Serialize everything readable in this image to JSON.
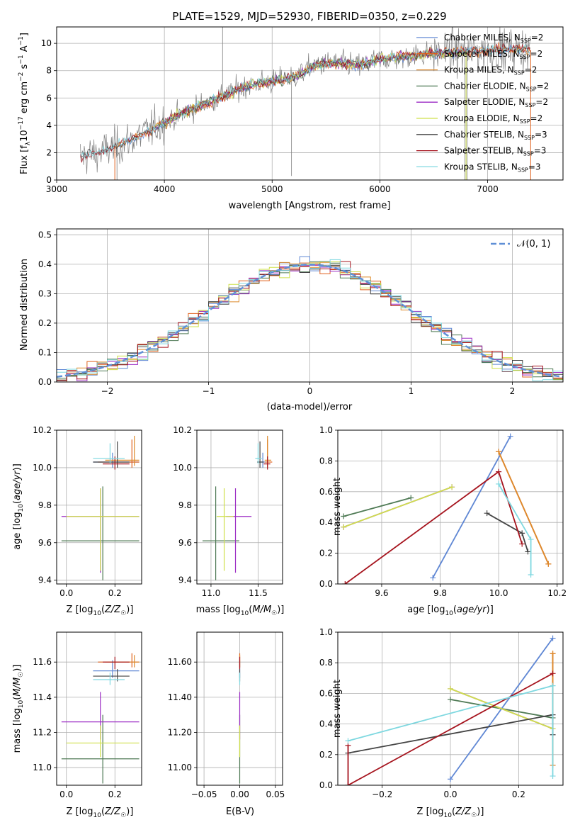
{
  "colors": {
    "chabrier_miles": "#5f87d4",
    "salpeter_miles": "#e0611d",
    "kroupa_miles": "#dd8a2c",
    "chabrier_elodie": "#4f7a55",
    "salpeter_elodie": "#9b2bc4",
    "kroupa_elodie": "#cfe04a",
    "chabrier_stelib": "#444444",
    "salpeter_stelib": "#a6141e",
    "kroupa_stelib": "#7fd8e0",
    "data": "#7f7f7f"
  },
  "chart_data": [
    {
      "type": "line",
      "title": "PLATE=1529, MJD=52930, FIBERID=0350, z=0.229",
      "xlabel": "wavelength [Angstrom, rest frame]",
      "ylabel": "Flux [f_λ10^-17 erg cm^-2 s^-1 A^-1]",
      "xlim": [
        3000,
        7700
      ],
      "ylim": [
        0,
        11.2
      ],
      "xticks": [
        3000,
        4000,
        5000,
        6000,
        7000
      ],
      "yticks": [
        0,
        2,
        4,
        6,
        8,
        10
      ],
      "legend_position": "top-right",
      "legend": [
        {
          "label": "Chabrier MILES, N",
          "sub": "SSP",
          "suffix": "=2",
          "color_key": "chabrier_miles"
        },
        {
          "label": "Salpeter MILES, N",
          "sub": "SSP",
          "suffix": "=2",
          "color_key": "salpeter_miles"
        },
        {
          "label": "Kroupa MILES, N",
          "sub": "SSP",
          "suffix": "=2",
          "color_key": "kroupa_miles"
        },
        {
          "label": "Chabrier ELODIE, N",
          "sub": "SSP",
          "suffix": "=2",
          "color_key": "chabrier_elodie"
        },
        {
          "label": "Salpeter ELODIE, N",
          "sub": "SSP",
          "suffix": "=2",
          "color_key": "salpeter_elodie"
        },
        {
          "label": "Kroupa ELODIE, N",
          "sub": "SSP",
          "suffix": "=2",
          "color_key": "kroupa_elodie"
        },
        {
          "label": "Chabrier STELIB, N",
          "sub": "SSP",
          "suffix": "=3",
          "color_key": "chabrier_stelib"
        },
        {
          "label": "Salpeter STELIB, N",
          "sub": "SSP",
          "suffix": "=3",
          "color_key": "salpeter_stelib"
        },
        {
          "label": "Kroupa STELIB, N",
          "sub": "SSP",
          "suffix": "=3",
          "color_key": "kroupa_stelib"
        }
      ],
      "spectrum_trend": {
        "x": [
          3220,
          3400,
          3600,
          3800,
          4000,
          4200,
          4400,
          4600,
          4800,
          5000,
          5200,
          5400,
          5600,
          5800,
          6000,
          6200,
          6400,
          6600,
          6800,
          7000,
          7200,
          7400
        ],
        "y": [
          1.7,
          2.0,
          2.6,
          3.4,
          4.2,
          5.0,
          5.7,
          6.3,
          7.0,
          7.2,
          7.5,
          8.4,
          8.6,
          8.4,
          8.8,
          9.0,
          9.2,
          9.3,
          9.4,
          9.5,
          9.6,
          9.5
        ]
      }
    },
    {
      "type": "histogram",
      "xlabel": "(data-model)/error",
      "ylabel": "Normed distribution",
      "xlim": [
        -2.5,
        2.5
      ],
      "ylim": [
        0,
        0.52
      ],
      "xticks": [
        -2,
        -1,
        0,
        1,
        2
      ],
      "yticks": [
        0.0,
        0.1,
        0.2,
        0.3,
        0.4,
        0.5
      ],
      "legend": "𝒩(0, 1)",
      "legend_position": "top-right",
      "bin_width": 0.1,
      "reference_curve": "normal(0,1)"
    },
    {
      "type": "scatter",
      "xlabel": "Z [log10(Z/Z⊙)]",
      "ylabel": "age  [log10(age/yr)]",
      "xlim": [
        -0.04,
        0.31
      ],
      "ylim": [
        9.38,
        10.2
      ],
      "xticks": [
        0.0,
        0.2
      ],
      "yticks": [
        9.4,
        9.6,
        9.8,
        10.0,
        10.2
      ],
      "points": [
        {
          "k": "chabrier_miles",
          "x": 0.19,
          "y": 10.03,
          "xe": [
            0.08,
            0.11
          ],
          "ye": [
            0.03,
            0.05
          ]
        },
        {
          "k": "salpeter_miles",
          "x": 0.27,
          "y": 10.03,
          "xe": [
            0.14,
            0.03
          ],
          "ye": [
            0.03,
            0.12
          ]
        },
        {
          "k": "kroupa_miles",
          "x": 0.28,
          "y": 10.04,
          "xe": [
            0.12,
            0.02
          ],
          "ye": [
            0.03,
            0.13
          ]
        },
        {
          "k": "chabrier_elodie",
          "x": 0.15,
          "y": 9.61,
          "xe": [
            0.17,
            0.15
          ],
          "ye": [
            0.21,
            0.29
          ]
        },
        {
          "k": "salpeter_elodie",
          "x": 0.14,
          "y": 9.74,
          "xe": [
            0.16,
            0.16
          ],
          "ye": [
            0.3,
            0.15
          ]
        },
        {
          "k": "kroupa_elodie",
          "x": 0.14,
          "y": 9.74,
          "xe": [
            0.14,
            0.16
          ],
          "ye": [
            0.29,
            0.15
          ]
        },
        {
          "k": "chabrier_stelib",
          "x": 0.21,
          "y": 10.03,
          "xe": [
            0.1,
            0.05
          ],
          "ye": [
            0.03,
            0.11
          ]
        },
        {
          "k": "salpeter_stelib",
          "x": 0.2,
          "y": 10.02,
          "xe": [
            0.05,
            0.06
          ],
          "ye": [
            0.03,
            0.04
          ]
        },
        {
          "k": "kroupa_stelib",
          "x": 0.18,
          "y": 10.05,
          "xe": [
            0.07,
            0.06
          ],
          "ye": [
            0.03,
            0.08
          ]
        }
      ]
    },
    {
      "type": "scatter",
      "xlabel": "mass [log10(M/M⊙)]",
      "xlim": [
        10.85,
        11.76
      ],
      "ylim": [
        9.38,
        10.2
      ],
      "xticks": [
        11.0,
        11.5
      ],
      "yticks": [
        9.4,
        9.6,
        9.8,
        10.0,
        10.2
      ],
      "points": [
        {
          "k": "chabrier_miles",
          "x": 11.55,
          "y": 10.03,
          "xe": [
            0.04,
            0.06
          ],
          "ye": [
            0.03,
            0.05
          ]
        },
        {
          "k": "salpeter_miles",
          "x": 11.6,
          "y": 10.03,
          "xe": [
            0.03,
            0.05
          ],
          "ye": [
            0.03,
            0.12
          ]
        },
        {
          "k": "kroupa_miles",
          "x": 11.6,
          "y": 10.04,
          "xe": [
            0.03,
            0.04
          ],
          "ye": [
            0.03,
            0.13
          ]
        },
        {
          "k": "chabrier_elodie",
          "x": 11.05,
          "y": 9.61,
          "xe": [
            0.14,
            0.25
          ],
          "ye": [
            0.21,
            0.29
          ]
        },
        {
          "k": "salpeter_elodie",
          "x": 11.26,
          "y": 9.74,
          "xe": [
            0.1,
            0.17
          ],
          "ye": [
            0.3,
            0.15
          ]
        },
        {
          "k": "kroupa_elodie",
          "x": 11.14,
          "y": 9.74,
          "xe": [
            0.08,
            0.1
          ],
          "ye": [
            0.29,
            0.15
          ]
        },
        {
          "k": "chabrier_stelib",
          "x": 11.52,
          "y": 10.03,
          "xe": [
            0.03,
            0.04
          ],
          "ye": [
            0.03,
            0.11
          ]
        },
        {
          "k": "salpeter_stelib",
          "x": 11.6,
          "y": 10.02,
          "xe": [
            0.04,
            0.03
          ],
          "ye": [
            0.03,
            0.04
          ]
        },
        {
          "k": "kroupa_stelib",
          "x": 11.5,
          "y": 10.05,
          "xe": [
            0.03,
            0.04
          ],
          "ye": [
            0.03,
            0.08
          ]
        }
      ]
    },
    {
      "type": "line",
      "xlabel": "age  [log10(age/yr)]",
      "ylabel": "mass weight",
      "xlim": [
        9.45,
        10.22
      ],
      "ylim": [
        0,
        1.0
      ],
      "xticks": [
        9.6,
        9.8,
        10.0,
        10.2
      ],
      "yticks": [
        0.0,
        0.2,
        0.4,
        0.6,
        0.8,
        1.0
      ],
      "series": [
        {
          "k": "chabrier_miles",
          "x": [
            9.775,
            10.04
          ],
          "y": [
            0.04,
            0.96
          ]
        },
        {
          "k": "salpeter_miles",
          "x": [
            10.0,
            10.17
          ],
          "y": [
            0.86,
            0.13
          ]
        },
        {
          "k": "kroupa_miles",
          "x": [
            10.0,
            10.17
          ],
          "y": [
            0.86,
            0.13
          ]
        },
        {
          "k": "chabrier_elodie",
          "x": [
            9.47,
            9.7
          ],
          "y": [
            0.44,
            0.56
          ]
        },
        {
          "k": "salpeter_elodie",
          "x": [
            9.47,
            9.84
          ],
          "y": [
            0.37,
            0.63
          ]
        },
        {
          "k": "kroupa_elodie",
          "x": [
            9.47,
            9.84
          ],
          "y": [
            0.37,
            0.63
          ]
        },
        {
          "k": "chabrier_stelib",
          "x": [
            9.96,
            10.08,
            10.1
          ],
          "y": [
            0.46,
            0.33,
            0.21
          ]
        },
        {
          "k": "salpeter_stelib",
          "x": [
            9.475,
            10.0,
            10.08
          ],
          "y": [
            0.0,
            0.73,
            0.26
          ]
        },
        {
          "k": "kroupa_stelib",
          "x": [
            10.0,
            10.11,
            10.11
          ],
          "y": [
            0.65,
            0.29,
            0.06
          ]
        }
      ]
    },
    {
      "type": "scatter",
      "xlabel": "Z [log10(Z/Z⊙)]",
      "ylabel": "mass [log10(M/M⊙)]",
      "xlim": [
        -0.04,
        0.31
      ],
      "ylim": [
        10.9,
        11.77
      ],
      "xticks": [
        0.0,
        0.2
      ],
      "yticks": [
        11.0,
        11.2,
        11.4,
        11.6
      ],
      "points": [
        {
          "k": "chabrier_miles",
          "x": 0.19,
          "y": 11.55,
          "xe": [
            0.08,
            0.11
          ],
          "ye": [
            0.04,
            0.06
          ]
        },
        {
          "k": "salpeter_miles",
          "x": 0.27,
          "y": 11.6,
          "xe": [
            0.14,
            0.03
          ],
          "ye": [
            0.03,
            0.05
          ]
        },
        {
          "k": "kroupa_miles",
          "x": 0.28,
          "y": 11.6,
          "xe": [
            0.12,
            0.02
          ],
          "ye": [
            0.03,
            0.04
          ]
        },
        {
          "k": "chabrier_elodie",
          "x": 0.15,
          "y": 11.05,
          "xe": [
            0.17,
            0.15
          ],
          "ye": [
            0.14,
            0.25
          ]
        },
        {
          "k": "salpeter_elodie",
          "x": 0.14,
          "y": 11.26,
          "xe": [
            0.16,
            0.16
          ],
          "ye": [
            0.1,
            0.17
          ]
        },
        {
          "k": "kroupa_elodie",
          "x": 0.14,
          "y": 11.14,
          "xe": [
            0.14,
            0.16
          ],
          "ye": [
            0.08,
            0.1
          ]
        },
        {
          "k": "chabrier_stelib",
          "x": 0.21,
          "y": 11.52,
          "xe": [
            0.1,
            0.05
          ],
          "ye": [
            0.03,
            0.04
          ]
        },
        {
          "k": "salpeter_stelib",
          "x": 0.2,
          "y": 11.6,
          "xe": [
            0.05,
            0.06
          ],
          "ye": [
            0.04,
            0.03
          ]
        },
        {
          "k": "kroupa_stelib",
          "x": 0.18,
          "y": 11.5,
          "xe": [
            0.07,
            0.06
          ],
          "ye": [
            0.03,
            0.04
          ]
        }
      ]
    },
    {
      "type": "scatter",
      "xlabel": "E(B-V)",
      "xlim": [
        -0.06,
        0.06
      ],
      "ylim": [
        10.9,
        11.77
      ],
      "xticks": [
        -0.05,
        0.0,
        0.05
      ],
      "yticks": [
        11.0,
        11.2,
        11.4,
        11.6
      ],
      "points": [
        {
          "k": "chabrier_miles",
          "x": 0.0,
          "y": 11.55,
          "xe": [
            0,
            0
          ],
          "ye": [
            0.04,
            0.06
          ]
        },
        {
          "k": "salpeter_miles",
          "x": 0.0,
          "y": 11.6,
          "xe": [
            0,
            0
          ],
          "ye": [
            0.03,
            0.05
          ]
        },
        {
          "k": "kroupa_miles",
          "x": 0.0,
          "y": 11.6,
          "xe": [
            0,
            0
          ],
          "ye": [
            0.03,
            0.04
          ]
        },
        {
          "k": "chabrier_elodie",
          "x": 0.0,
          "y": 11.05,
          "xe": [
            0,
            0
          ],
          "ye": [
            0.14,
            0.25
          ]
        },
        {
          "k": "salpeter_elodie",
          "x": 0.0,
          "y": 11.26,
          "xe": [
            0,
            0
          ],
          "ye": [
            0.1,
            0.17
          ]
        },
        {
          "k": "kroupa_elodie",
          "x": 0.0,
          "y": 11.14,
          "xe": [
            0,
            0
          ],
          "ye": [
            0.08,
            0.1
          ]
        },
        {
          "k": "chabrier_stelib",
          "x": 0.0,
          "y": 11.52,
          "xe": [
            0,
            0
          ],
          "ye": [
            0.03,
            0.04
          ]
        },
        {
          "k": "salpeter_stelib",
          "x": 0.0,
          "y": 11.6,
          "xe": [
            0,
            0
          ],
          "ye": [
            0.04,
            0.03
          ]
        },
        {
          "k": "kroupa_stelib",
          "x": 0.0,
          "y": 11.5,
          "xe": [
            0,
            0
          ],
          "ye": [
            0.03,
            0.04
          ]
        }
      ]
    },
    {
      "type": "line",
      "xlabel": "Z [log10(Z/Z⊙)]",
      "ylabel": "mass weight",
      "xlim": [
        -0.33,
        0.33
      ],
      "ylim": [
        0,
        1.0
      ],
      "xticks": [
        -0.2,
        0.0,
        0.2
      ],
      "yticks": [
        0.0,
        0.2,
        0.4,
        0.6,
        0.8,
        1.0
      ],
      "series": [
        {
          "k": "chabrier_miles",
          "x": [
            0.0,
            0.3
          ],
          "y": [
            0.04,
            0.96
          ]
        },
        {
          "k": "salpeter_miles",
          "x": [
            0.3,
            0.3
          ],
          "y": [
            0.86,
            0.13
          ]
        },
        {
          "k": "kroupa_miles",
          "x": [
            0.3,
            0.3
          ],
          "y": [
            0.86,
            0.13
          ]
        },
        {
          "k": "chabrier_elodie",
          "x": [
            0.0,
            0.3
          ],
          "y": [
            0.56,
            0.44
          ]
        },
        {
          "k": "salpeter_elodie",
          "x": [
            0.0,
            0.3
          ],
          "y": [
            0.63,
            0.37
          ]
        },
        {
          "k": "kroupa_elodie",
          "x": [
            0.0,
            0.3
          ],
          "y": [
            0.63,
            0.37
          ]
        },
        {
          "k": "chabrier_stelib",
          "x": [
            -0.3,
            0.3,
            0.3
          ],
          "y": [
            0.21,
            0.46,
            0.33
          ]
        },
        {
          "k": "salpeter_stelib",
          "x": [
            -0.3,
            -0.3,
            0.3
          ],
          "y": [
            0.26,
            0.0,
            0.73
          ]
        },
        {
          "k": "kroupa_stelib",
          "x": [
            -0.3,
            0.3,
            0.3
          ],
          "y": [
            0.29,
            0.65,
            0.06
          ]
        }
      ]
    }
  ]
}
